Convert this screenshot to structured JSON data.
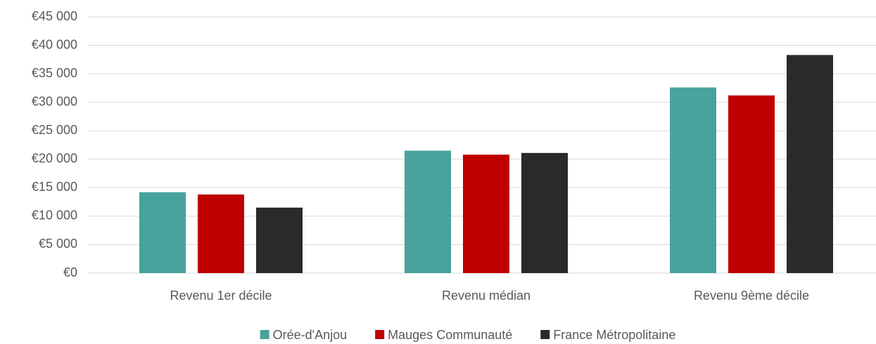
{
  "chart_data": {
    "type": "bar",
    "categories": [
      "Revenu 1er décile",
      "Revenu médian",
      "Revenu 9ème décile"
    ],
    "series": [
      {
        "name": "Orée-d'Anjou",
        "color": "#47a39b",
        "values": [
          14200,
          21500,
          32600
        ]
      },
      {
        "name": "Mauges Communauté",
        "color": "#c00000",
        "values": [
          13800,
          20800,
          31200
        ]
      },
      {
        "name": "France Métropolitaine",
        "color": "#2a2a2a",
        "values": [
          11500,
          21100,
          38300
        ]
      }
    ],
    "ylim": [
      0,
      45000
    ],
    "yticks": [
      {
        "value": 0,
        "label": "€0"
      },
      {
        "value": 5000,
        "label": "€5 000"
      },
      {
        "value": 10000,
        "label": "€10 000"
      },
      {
        "value": 15000,
        "label": "€15 000"
      },
      {
        "value": 20000,
        "label": "€20 000"
      },
      {
        "value": 25000,
        "label": "€25 000"
      },
      {
        "value": 30000,
        "label": "€30 000"
      },
      {
        "value": 35000,
        "label": "€35 000"
      },
      {
        "value": 40000,
        "label": "€40 000"
      },
      {
        "value": 45000,
        "label": "€45 000"
      }
    ],
    "grid": true,
    "legend": "bottom"
  }
}
